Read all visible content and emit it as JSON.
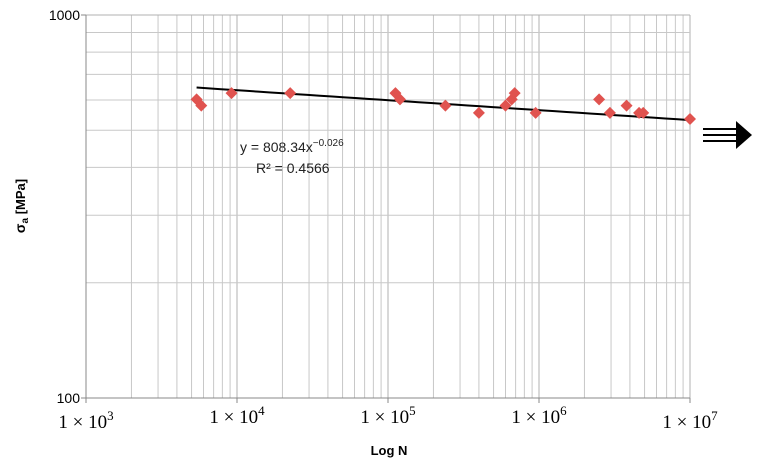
{
  "chart_data": {
    "type": "scatter",
    "title": "",
    "xlabel": "Log N",
    "ylabel_main": "σ",
    "ylabel_sub": "a",
    "ylabel_unit": " [MPa]",
    "x_scale": "log",
    "y_scale": "log",
    "xlim": [
      1000,
      10000000
    ],
    "ylim": [
      100,
      1000
    ],
    "x_ticks": [
      {
        "value": 1000,
        "base": "1 × 10",
        "exp": "3"
      },
      {
        "value": 10000,
        "base": "1 × 10",
        "exp": "4"
      },
      {
        "value": 100000,
        "base": "1 × 10",
        "exp": "5"
      },
      {
        "value": 1000000,
        "base": "1 × 10",
        "exp": "6"
      },
      {
        "value": 10000000,
        "base": "1 × 10",
        "exp": "7"
      }
    ],
    "y_ticks": [
      {
        "value": 1000,
        "label": "1000"
      },
      {
        "value": 100,
        "label": "100"
      }
    ],
    "grid": true,
    "series": [
      {
        "marker": "diamond",
        "color": "#e0534f",
        "points": [
          [
            5400,
            602
          ],
          [
            5800,
            580
          ],
          [
            9200,
            625
          ],
          [
            22500,
            625
          ],
          [
            112000,
            625
          ],
          [
            120000,
            602
          ],
          [
            240000,
            580
          ],
          [
            400000,
            555
          ],
          [
            600000,
            580
          ],
          [
            660000,
            602
          ],
          [
            690000,
            625
          ],
          [
            950000,
            555
          ],
          [
            2500000,
            602
          ],
          [
            2950000,
            555
          ],
          [
            3800000,
            580
          ],
          [
            4600000,
            555
          ],
          [
            4900000,
            555
          ],
          [
            10000000,
            535
          ]
        ]
      }
    ],
    "trendline": {
      "type": "power",
      "a": 808.34,
      "b": -0.026,
      "x_range": [
        5400,
        10000000
      ],
      "color": "#000000",
      "eq_prefix": "y = 808.34x",
      "eq_exp": "−0.026",
      "r2_text": "R² = 0.4566"
    },
    "annotation": {
      "type": "runout-arrow",
      "description": "double arrow pointing right"
    }
  }
}
